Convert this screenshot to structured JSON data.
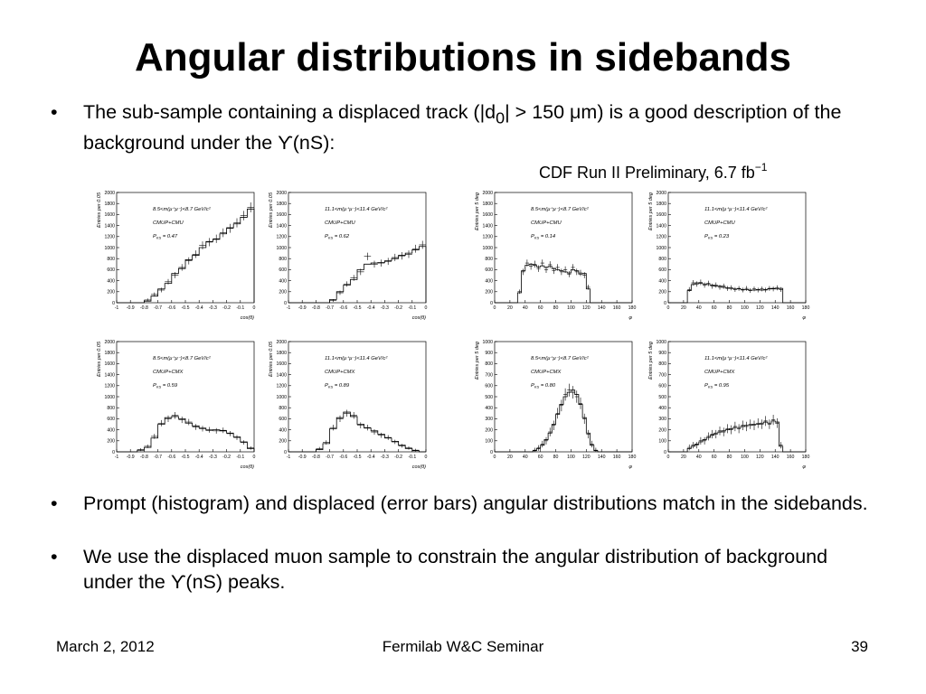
{
  "slide": {
    "title": "Angular distributions in sidebands",
    "bullet_char": "•",
    "bullets": [
      {
        "pre": "The sub-sample containing a displaced track (|d",
        "sub": "0",
        "post": "| > 150 μm) is a good description of the background under the ϒ(nS):"
      },
      {
        "text": "Prompt (histogram) and displaced (error bars) angular distributions match in the sidebands."
      },
      {
        "text": "We use the displaced muon sample to constrain the angular distribution of background under the ϒ(nS) peaks."
      }
    ],
    "figure_label": {
      "text": "CDF Run II  Preliminary, 6.7 fb",
      "sup": "−1"
    },
    "footer": {
      "date": "March 2, 2012",
      "title": "Fermilab W&C Seminar",
      "page": "39"
    }
  },
  "colors": {
    "text": "#000000",
    "axis": "#000000",
    "histogram": "#000000",
    "error_bars": "#000000",
    "background": "#ffffff"
  },
  "chart_data": [
    {
      "type": "bar",
      "xlabel": "cos(θ)",
      "ylabel": "Entries per 0.05",
      "xlim": [
        -1,
        0
      ],
      "ylim": [
        0,
        2000
      ],
      "xticks": [
        -1,
        -0.9,
        -0.8,
        -0.7,
        -0.6,
        -0.5,
        -0.4,
        -0.3,
        -0.2,
        -0.1,
        0
      ],
      "xtick_labels": [
        "-1",
        "-0.9",
        "-0.8",
        "-0.7",
        "-0.6",
        "-0.5",
        "-0.4",
        "-0.3",
        "-0.2",
        "-0.1",
        "0"
      ],
      "yticks": [
        0,
        200,
        400,
        600,
        800,
        1000,
        1200,
        1400,
        1600,
        1800,
        2000
      ],
      "mass_window": "8.5<m(μ⁺μ⁻)<8.7 GeV/c²",
      "sample": "CMUP+CMU",
      "pks_label": "P",
      "pks_sub": "KS",
      "pks_value": "=  0.47",
      "series": [
        {
          "name": "prompt",
          "style": "histogram",
          "values": [
            0,
            0,
            0,
            0,
            30,
            120,
            250,
            350,
            530,
            620,
            780,
            860,
            1000,
            1110,
            1150,
            1250,
            1360,
            1430,
            1550,
            1700
          ]
        },
        {
          "name": "displaced",
          "style": "error_bars",
          "values": [
            0,
            0,
            0,
            0,
            50,
            150,
            230,
            380,
            500,
            640,
            760,
            880,
            1040,
            1100,
            1160,
            1270,
            1350,
            1450,
            1580,
            1730
          ]
        }
      ]
    },
    {
      "type": "bar",
      "xlabel": "cos(θ)",
      "ylabel": "Entries per 0.05",
      "xlim": [
        -1,
        0
      ],
      "ylim": [
        0,
        2000
      ],
      "xticks": [
        -1,
        -0.9,
        -0.8,
        -0.7,
        -0.6,
        -0.5,
        -0.4,
        -0.3,
        -0.2,
        -0.1,
        0
      ],
      "xtick_labels": [
        "-1",
        "-0.9",
        "-0.8",
        "-0.7",
        "-0.6",
        "-0.5",
        "-0.4",
        "-0.3",
        "-0.2",
        "-0.1",
        "0"
      ],
      "yticks": [
        0,
        200,
        400,
        600,
        800,
        1000,
        1200,
        1400,
        1600,
        1800,
        2000
      ],
      "mass_window": "11.1<m(μ⁺μ⁻)<11.4 GeV/c²",
      "sample": "CMUP+CMU",
      "pks_label": "P",
      "pks_sub": "KS",
      "pks_value": "=  0.62",
      "series": [
        {
          "name": "prompt",
          "style": "histogram",
          "values": [
            0,
            0,
            0,
            0,
            0,
            0,
            60,
            200,
            320,
            420,
            600,
            700,
            720,
            730,
            760,
            800,
            860,
            900,
            960,
            1020
          ]
        },
        {
          "name": "displaced",
          "style": "error_bars",
          "values": [
            0,
            0,
            0,
            0,
            0,
            0,
            40,
            180,
            340,
            450,
            560,
            840,
            700,
            720,
            750,
            820,
            850,
            880,
            980,
            1050
          ]
        }
      ]
    },
    {
      "type": "bar",
      "xlabel": "φ",
      "ylabel": "Entries per 5 deg",
      "xlim": [
        0,
        180
      ],
      "ylim": [
        0,
        2000
      ],
      "xticks": [
        0,
        20,
        40,
        60,
        80,
        100,
        120,
        140,
        160,
        180
      ],
      "xtick_labels": [
        "0",
        "20",
        "40",
        "60",
        "80",
        "100",
        "120",
        "140",
        "160",
        "180"
      ],
      "yticks": [
        0,
        200,
        400,
        600,
        800,
        1000,
        1200,
        1400,
        1600,
        1800,
        2000
      ],
      "mass_window": "8.5<m(μ⁺μ⁻)<8.7 GeV/c²",
      "sample": "CMUP+CMU",
      "pks_label": "P",
      "pks_sub": "KS",
      "pks_value": "=  0.14",
      "series": [
        {
          "name": "prompt",
          "style": "histogram",
          "values": [
            0,
            0,
            0,
            0,
            0,
            0,
            180,
            580,
            680,
            700,
            680,
            650,
            670,
            640,
            660,
            620,
            600,
            580,
            560,
            540,
            600,
            580,
            520,
            530,
            250,
            0,
            0,
            0,
            0,
            0,
            0,
            0,
            0,
            0,
            0,
            0
          ]
        },
        {
          "name": "displaced",
          "style": "error_bars",
          "values": [
            0,
            0,
            0,
            0,
            0,
            0,
            200,
            560,
            720,
            660,
            700,
            620,
            720,
            600,
            690,
            580,
            640,
            560,
            600,
            520,
            640,
            560,
            540,
            500,
            280,
            0,
            0,
            0,
            0,
            0,
            0,
            0,
            0,
            0,
            0,
            0
          ]
        }
      ]
    },
    {
      "type": "bar",
      "xlabel": "φ",
      "ylabel": "Entries per 5 deg",
      "xlim": [
        0,
        180
      ],
      "ylim": [
        0,
        2000
      ],
      "xticks": [
        0,
        20,
        40,
        60,
        80,
        100,
        120,
        140,
        160,
        180
      ],
      "xtick_labels": [
        "0",
        "20",
        "40",
        "60",
        "80",
        "100",
        "120",
        "140",
        "160",
        "180"
      ],
      "yticks": [
        0,
        200,
        400,
        600,
        800,
        1000,
        1200,
        1400,
        1600,
        1800,
        2000
      ],
      "mass_window": "11.1<m(μ⁺μ⁻)<11.4 GeV/c²",
      "sample": "CMUP+CMU",
      "pks_label": "P",
      "pks_sub": "KS",
      "pks_value": "=  0.23",
      "series": [
        {
          "name": "prompt",
          "style": "histogram",
          "values": [
            0,
            0,
            0,
            0,
            0,
            220,
            330,
            360,
            350,
            340,
            330,
            320,
            300,
            300,
            280,
            270,
            260,
            250,
            250,
            240,
            240,
            230,
            230,
            240,
            230,
            240,
            250,
            260,
            250,
            260,
            0,
            0,
            0,
            0,
            0,
            0
          ]
        },
        {
          "name": "displaced",
          "style": "error_bars",
          "values": [
            0,
            0,
            0,
            0,
            0,
            240,
            360,
            340,
            370,
            320,
            350,
            300,
            320,
            280,
            300,
            260,
            270,
            240,
            260,
            230,
            260,
            220,
            250,
            230,
            250,
            230,
            260,
            250,
            270,
            240,
            0,
            0,
            0,
            0,
            0,
            0
          ]
        }
      ]
    },
    {
      "type": "bar",
      "xlabel": "cos(θ)",
      "ylabel": "Entries per 0.05",
      "xlim": [
        -1,
        0
      ],
      "ylim": [
        0,
        2000
      ],
      "xticks": [
        -1,
        -0.9,
        -0.8,
        -0.7,
        -0.6,
        -0.5,
        -0.4,
        -0.3,
        -0.2,
        -0.1,
        0
      ],
      "xtick_labels": [
        "-1",
        "-0.9",
        "-0.8",
        "-0.7",
        "-0.6",
        "-0.5",
        "-0.4",
        "-0.3",
        "-0.2",
        "-0.1",
        "0"
      ],
      "yticks": [
        0,
        200,
        400,
        600,
        800,
        1000,
        1200,
        1400,
        1600,
        1800,
        2000
      ],
      "mass_window": "8.5<m(μ⁺μ⁻)<8.7 GeV/c²",
      "sample": "CMUP+CMX",
      "pks_label": "P",
      "pks_sub": "KS",
      "pks_value": "=  0.59",
      "series": [
        {
          "name": "prompt",
          "style": "histogram",
          "values": [
            0,
            0,
            0,
            30,
            80,
            250,
            500,
            620,
            640,
            600,
            520,
            470,
            430,
            390,
            400,
            380,
            340,
            270,
            180,
            60
          ]
        },
        {
          "name": "displaced",
          "style": "error_bars",
          "values": [
            0,
            0,
            0,
            40,
            100,
            280,
            520,
            600,
            660,
            580,
            540,
            450,
            420,
            400,
            380,
            390,
            330,
            260,
            170,
            70
          ]
        }
      ]
    },
    {
      "type": "bar",
      "xlabel": "cos(θ)",
      "ylabel": "Entries per 0.05",
      "xlim": [
        -1,
        0
      ],
      "ylim": [
        0,
        2000
      ],
      "xticks": [
        -1,
        -0.9,
        -0.8,
        -0.7,
        -0.6,
        -0.5,
        -0.4,
        -0.3,
        -0.2,
        -0.1,
        0
      ],
      "xtick_labels": [
        "-1",
        "-0.9",
        "-0.8",
        "-0.7",
        "-0.6",
        "-0.5",
        "-0.4",
        "-0.3",
        "-0.2",
        "-0.1",
        "0"
      ],
      "yticks": [
        0,
        200,
        400,
        600,
        800,
        1000,
        1200,
        1400,
        1600,
        1800,
        2000
      ],
      "mass_window": "11.1<m(μ⁺μ⁻)<11.4 GeV/c²",
      "sample": "CMUP+CMX",
      "pks_label": "P",
      "pks_sub": "KS",
      "pks_value": "=  0.89",
      "series": [
        {
          "name": "prompt",
          "style": "histogram",
          "values": [
            0,
            0,
            0,
            0,
            40,
            150,
            420,
            620,
            720,
            640,
            500,
            430,
            380,
            320,
            250,
            190,
            120,
            60,
            20,
            0
          ]
        },
        {
          "name": "displaced",
          "style": "error_bars",
          "values": [
            0,
            0,
            0,
            0,
            60,
            170,
            440,
            600,
            700,
            660,
            480,
            440,
            360,
            300,
            260,
            180,
            110,
            70,
            30,
            0
          ]
        }
      ]
    },
    {
      "type": "bar",
      "xlabel": "φ",
      "ylabel": "Entries per 5 deg",
      "xlim": [
        0,
        180
      ],
      "ylim": [
        0,
        1000
      ],
      "xticks": [
        0,
        20,
        40,
        60,
        80,
        100,
        120,
        140,
        160,
        180
      ],
      "xtick_labels": [
        "0",
        "20",
        "40",
        "60",
        "80",
        "100",
        "120",
        "140",
        "160",
        "180"
      ],
      "yticks": [
        0,
        100,
        200,
        300,
        400,
        500,
        600,
        700,
        800,
        900,
        1000
      ],
      "mass_window": "8.5<m(μ⁺μ⁻)<8.7 GeV/c²",
      "sample": "CMUP+CMX",
      "pks_label": "P",
      "pks_sub": "KS",
      "pks_value": "=  0.80",
      "series": [
        {
          "name": "prompt",
          "style": "histogram",
          "values": [
            0,
            0,
            0,
            0,
            0,
            0,
            0,
            0,
            0,
            0,
            10,
            30,
            60,
            110,
            170,
            250,
            340,
            430,
            500,
            540,
            560,
            520,
            430,
            310,
            170,
            60,
            10,
            0,
            0,
            0,
            0,
            0,
            0,
            0,
            0,
            0
          ]
        },
        {
          "name": "displaced",
          "style": "error_bars",
          "values": [
            0,
            0,
            0,
            0,
            0,
            0,
            0,
            0,
            0,
            0,
            15,
            35,
            70,
            100,
            180,
            240,
            350,
            420,
            520,
            560,
            540,
            500,
            440,
            300,
            160,
            70,
            15,
            0,
            0,
            0,
            0,
            0,
            0,
            0,
            0,
            0
          ]
        }
      ]
    },
    {
      "type": "bar",
      "xlabel": "φ",
      "ylabel": "Entries per 5 deg",
      "xlim": [
        0,
        180
      ],
      "ylim": [
        0,
        1000
      ],
      "xticks": [
        0,
        20,
        40,
        60,
        80,
        100,
        120,
        140,
        160,
        180
      ],
      "xtick_labels": [
        "0",
        "20",
        "40",
        "60",
        "80",
        "100",
        "120",
        "140",
        "160",
        "180"
      ],
      "yticks": [
        0,
        100,
        200,
        300,
        400,
        500,
        600,
        700,
        800,
        900,
        1000
      ],
      "mass_window": "11.1<m(μ⁺μ⁻)<11.4 GeV/c²",
      "sample": "CMUP+CMX",
      "pks_label": "P",
      "pks_sub": "KS",
      "pks_value": "=  0.95",
      "series": [
        {
          "name": "prompt",
          "style": "histogram",
          "values": [
            0,
            0,
            0,
            0,
            0,
            30,
            50,
            70,
            90,
            110,
            130,
            150,
            170,
            180,
            190,
            200,
            210,
            220,
            220,
            230,
            240,
            240,
            250,
            250,
            260,
            270,
            260,
            280,
            270,
            50,
            0,
            0,
            0,
            0,
            0,
            0
          ]
        },
        {
          "name": "displaced",
          "style": "error_bars",
          "values": [
            0,
            0,
            0,
            0,
            0,
            40,
            60,
            60,
            100,
            100,
            140,
            160,
            160,
            190,
            180,
            210,
            200,
            230,
            210,
            240,
            230,
            250,
            240,
            260,
            250,
            280,
            250,
            290,
            260,
            60,
            0,
            0,
            0,
            0,
            0,
            0
          ]
        }
      ]
    }
  ]
}
